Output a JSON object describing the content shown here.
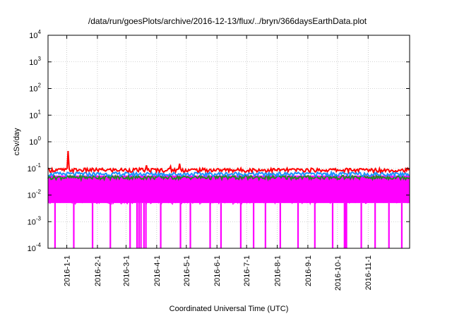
{
  "chart_data": {
    "type": "line",
    "title": "/data/run/goesPlots/archive/2016-12-13/flux/../bryn/366daysEarthData.plot",
    "xlabel": "Coordinated Universal Time (UTC)",
    "ylabel": "cSv/day",
    "yscale": "log",
    "ylim": [
      0.0001,
      10000
    ],
    "xlim": [
      "2015-12-13",
      "2016-12-13"
    ],
    "grid": true,
    "y_ticks": [
      {
        "value": 0.0001,
        "base": "10",
        "exp": "-4"
      },
      {
        "value": 0.001,
        "base": "10",
        "exp": "-3"
      },
      {
        "value": 0.01,
        "base": "10",
        "exp": "-2"
      },
      {
        "value": 0.1,
        "base": "10",
        "exp": "-1"
      },
      {
        "value": 1,
        "base": "10",
        "exp": "0"
      },
      {
        "value": 10,
        "base": "10",
        "exp": "1"
      },
      {
        "value": 100,
        "base": "10",
        "exp": "2"
      },
      {
        "value": 1000,
        "base": "10",
        "exp": "3"
      },
      {
        "value": 10000,
        "base": "10",
        "exp": "4"
      }
    ],
    "x_ticks": [
      "2016-1-1",
      "2016-2-1",
      "2016-3-1",
      "2016-4-1",
      "2016-5-1",
      "2016-6-1",
      "2016-7-1",
      "2016-8-1",
      "2016-9-1",
      "2016-10-1",
      "2016-11-1"
    ],
    "series": [
      {
        "color": "#ff00ff",
        "typical": 0.045,
        "floor": 0.005,
        "drops": [
          "2015-12-20",
          "2016-01-08",
          "2016-01-27",
          "2016-02-14",
          "2016-03-05",
          "2016-03-12",
          "2016-03-14",
          "2016-03-16",
          "2016-03-19",
          "2016-03-21",
          "2016-04-05",
          "2016-04-25",
          "2016-05-05",
          "2016-05-25",
          "2016-06-05",
          "2016-06-25",
          "2016-07-08",
          "2016-07-20",
          "2016-08-04",
          "2016-08-22",
          "2016-09-08",
          "2016-09-26",
          "2016-10-08",
          "2016-10-09",
          "2016-10-10",
          "2016-10-25",
          "2016-11-08",
          "2016-11-22",
          "2016-12-05"
        ]
      },
      {
        "color": "#228b22",
        "typical": 0.045
      },
      {
        "color": "#1e90ff",
        "typical": 0.06
      },
      {
        "color": "#ff0000",
        "typical": 0.085,
        "spikes": [
          {
            "date": "2016-01-02",
            "value": 0.45
          },
          {
            "date": "2016-03-22",
            "value": 0.13
          },
          {
            "date": "2016-04-15",
            "value": 0.12
          },
          {
            "date": "2016-04-24",
            "value": 0.15
          }
        ]
      }
    ]
  }
}
